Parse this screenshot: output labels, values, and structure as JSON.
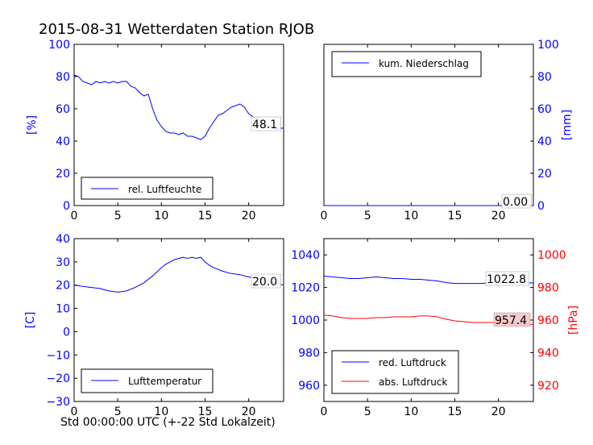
{
  "title": "2015-08-31 Wetterdaten Station RJOB",
  "xlabel": "Std 00:00:00 UTC (+-22 Std Lokalzeit)",
  "chart_data": [
    {
      "type": "line",
      "ylabel": "[%]",
      "xlim": [
        0,
        24
      ],
      "ylim": [
        0,
        100
      ],
      "xticks": [
        0,
        5,
        10,
        15,
        20
      ],
      "yticks": [
        0,
        20,
        40,
        60,
        80,
        100
      ],
      "legend_position": "lower-left",
      "series": [
        {
          "name": "rel. Luftfeuchte",
          "color": "#0000ff",
          "x": [
            0,
            0.5,
            1,
            1.5,
            2,
            2.5,
            3,
            3.5,
            4,
            4.5,
            5,
            5.5,
            6,
            6.5,
            7,
            7.5,
            8,
            8.5,
            9,
            9.5,
            10,
            10.5,
            11,
            11.5,
            12,
            12.5,
            13,
            13.5,
            14,
            14.5,
            15,
            15.5,
            16,
            16.5,
            17,
            17.5,
            18,
            18.5,
            19,
            19.5,
            20,
            20.5,
            21,
            21.5,
            22,
            22.5,
            23,
            23.5,
            24
          ],
          "y": [
            81,
            80,
            77,
            76,
            75,
            77,
            76,
            77,
            76,
            77,
            76,
            77,
            77,
            74,
            73,
            70,
            68,
            69,
            60,
            53,
            49,
            46,
            45,
            45,
            44,
            45,
            43,
            43,
            42,
            41,
            43,
            48,
            52,
            56,
            57,
            59,
            61,
            62,
            63,
            61,
            57,
            55,
            54,
            52,
            50,
            49,
            48,
            48,
            48
          ]
        }
      ],
      "annotation": "48.1"
    },
    {
      "type": "line",
      "ylabel": "[mm]",
      "xlim": [
        0,
        24
      ],
      "ylim": [
        0,
        100
      ],
      "xticks": [
        0,
        5,
        10,
        15,
        20
      ],
      "yticks": [
        0,
        20,
        40,
        60,
        80,
        100
      ],
      "legend_position": "upper-left",
      "series": [
        {
          "name": "kum. Niederschlag",
          "color": "#0000ff",
          "x": [
            0,
            24
          ],
          "y": [
            0,
            0
          ]
        }
      ],
      "annotation": "0.00"
    },
    {
      "type": "line",
      "ylabel": "[C]",
      "xlim": [
        0,
        24
      ],
      "ylim": [
        -30,
        40
      ],
      "xticks": [
        0,
        5,
        10,
        15,
        20
      ],
      "yticks": [
        -30,
        -20,
        -10,
        0,
        10,
        20,
        30,
        40
      ],
      "legend_position": "lower-left",
      "series": [
        {
          "name": "Lufttemperatur",
          "color": "#0000ff",
          "x": [
            0,
            1,
            2,
            3,
            4,
            5,
            6,
            7,
            8,
            9,
            10,
            10.5,
            11,
            11.5,
            12,
            12.5,
            13,
            13.5,
            14,
            14.5,
            15,
            15.5,
            16,
            17,
            18,
            19,
            20,
            21,
            22,
            23,
            24
          ],
          "y": [
            20,
            19.5,
            19,
            18.5,
            17.5,
            17,
            17.5,
            19,
            21,
            24,
            27.5,
            29,
            30,
            31,
            31.5,
            32,
            31.5,
            32,
            31.5,
            32,
            30,
            28.5,
            27.5,
            26,
            25,
            24.5,
            23.5,
            23,
            22,
            21,
            20
          ]
        }
      ],
      "annotation": "20.0"
    },
    {
      "type": "line",
      "ylabel_right": "[hPa]",
      "xlim": [
        0,
        24
      ],
      "ylim": [
        950,
        1050
      ],
      "ylim_right": [
        910,
        1010
      ],
      "xticks": [
        0,
        5,
        10,
        15,
        20
      ],
      "yticks": [
        960,
        980,
        1000,
        1020,
        1040
      ],
      "yticks_right": [
        920,
        940,
        960,
        980,
        1000
      ],
      "legend_position": "lower-left",
      "series": [
        {
          "name": "red. Luftdruck",
          "color": "#0000ff",
          "axis": "left",
          "x": [
            0,
            1,
            2,
            3,
            4,
            5,
            6,
            7,
            8,
            9,
            10,
            11,
            12,
            13,
            14,
            15,
            16,
            17,
            18,
            19,
            20,
            21,
            22,
            23,
            24
          ],
          "y": [
            1027,
            1026.5,
            1026,
            1025.5,
            1025.5,
            1026,
            1026.5,
            1026,
            1025.5,
            1025.5,
            1025,
            1025,
            1024.5,
            1024,
            1023,
            1022.5,
            1022.5,
            1022.5,
            1022.5,
            1022.8,
            1023,
            1023,
            1022.8,
            1022.8,
            1022.8
          ]
        },
        {
          "name": "abs. Luftdruck",
          "color": "#ff0000",
          "axis": "right",
          "x": [
            0,
            1,
            2,
            3,
            4,
            5,
            6,
            7,
            8,
            9,
            10,
            11,
            12,
            13,
            14,
            15,
            16,
            17,
            18,
            19,
            20,
            21,
            22,
            23,
            24
          ],
          "y": [
            963,
            962.5,
            961.5,
            961,
            961,
            961,
            961.5,
            961.5,
            962,
            962,
            962,
            962.5,
            962.5,
            962,
            960.5,
            959.5,
            959,
            958.5,
            958.5,
            958.5,
            958.5,
            958.5,
            958,
            957.5,
            957.4
          ]
        }
      ],
      "annotations": [
        "1022.8",
        "957.4"
      ]
    }
  ]
}
